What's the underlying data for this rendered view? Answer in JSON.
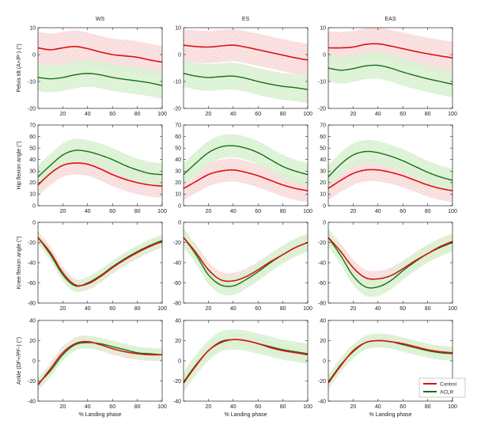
{
  "colors": {
    "control": "#dd1111",
    "aclr": "#1a6e1a",
    "control_band": "#f4b8b8",
    "aclr_band": "#bfe8b5"
  },
  "legend": {
    "control": "Control",
    "aclr": "ACLR",
    "placement": "inside-bottom-right-of-last-panel"
  },
  "xlabel": "% Landing phase",
  "columns": [
    "WS",
    "ES",
    "EAS"
  ],
  "chart_data": [
    {
      "type": "line",
      "row": 0,
      "col": 0,
      "title": "WS",
      "ylabel": "Pelvis tilt (A+/P-) (°)",
      "xlabel": "",
      "xlim": [
        0,
        100
      ],
      "ylim": [
        -20,
        10
      ],
      "xticks": [
        20,
        40,
        60,
        80,
        100
      ],
      "yticks": [
        -20,
        -10,
        0,
        10
      ],
      "x": [
        0,
        10,
        20,
        30,
        40,
        50,
        60,
        70,
        80,
        90,
        100
      ],
      "series": [
        {
          "name": "Control",
          "values": [
            2.5,
            1.8,
            2.5,
            3.0,
            2.2,
            1.0,
            0.0,
            -0.5,
            -1.0,
            -2.0,
            -2.8
          ],
          "band": 6
        },
        {
          "name": "ACLR",
          "values": [
            -8.5,
            -9.0,
            -8.5,
            -7.5,
            -7.0,
            -7.5,
            -8.5,
            -9.2,
            -9.8,
            -10.5,
            -11.5
          ],
          "band": 5
        }
      ]
    },
    {
      "type": "line",
      "row": 0,
      "col": 1,
      "title": "ES",
      "ylabel": "",
      "xlabel": "",
      "xlim": [
        0,
        100
      ],
      "ylim": [
        -20,
        10
      ],
      "xticks": [
        20,
        40,
        60,
        80,
        100
      ],
      "yticks": [
        -20,
        -10,
        0,
        10
      ],
      "x": [
        0,
        10,
        20,
        30,
        40,
        50,
        60,
        70,
        80,
        90,
        100
      ],
      "series": [
        {
          "name": "Control",
          "values": [
            3.5,
            3.0,
            2.8,
            3.2,
            3.5,
            2.8,
            1.8,
            0.8,
            -0.2,
            -1.2,
            -2.0
          ],
          "band": 6
        },
        {
          "name": "ACLR",
          "values": [
            -7.0,
            -8.0,
            -8.5,
            -8.2,
            -8.0,
            -8.8,
            -10.0,
            -11.0,
            -11.8,
            -12.3,
            -13.0
          ],
          "band": 5
        }
      ]
    },
    {
      "type": "line",
      "row": 0,
      "col": 2,
      "title": "EAS",
      "ylabel": "",
      "xlabel": "",
      "xlim": [
        0,
        100
      ],
      "ylim": [
        -20,
        10
      ],
      "xticks": [
        20,
        40,
        60,
        80,
        100
      ],
      "yticks": [
        -20,
        -10,
        0,
        10
      ],
      "x": [
        0,
        10,
        20,
        30,
        40,
        50,
        60,
        70,
        80,
        90,
        100
      ],
      "series": [
        {
          "name": "Control",
          "values": [
            2.5,
            2.5,
            2.8,
            3.8,
            4.0,
            3.2,
            2.2,
            1.2,
            0.3,
            -0.5,
            -1.2
          ],
          "band": 6
        },
        {
          "name": "ACLR",
          "values": [
            -5.0,
            -5.8,
            -5.2,
            -4.2,
            -4.0,
            -5.0,
            -6.5,
            -7.8,
            -9.0,
            -10.0,
            -11.0
          ],
          "band": 5
        }
      ]
    },
    {
      "type": "line",
      "row": 1,
      "col": 0,
      "title": "",
      "ylabel": "Hip flexion angle (°)",
      "xlabel": "",
      "xlim": [
        0,
        100
      ],
      "ylim": [
        0,
        70
      ],
      "xticks": [
        20,
        40,
        60,
        80,
        100
      ],
      "yticks": [
        0,
        10,
        20,
        30,
        40,
        50,
        60,
        70
      ],
      "x": [
        0,
        10,
        20,
        30,
        40,
        50,
        60,
        70,
        80,
        90,
        100
      ],
      "series": [
        {
          "name": "Control",
          "values": [
            18,
            28,
            35,
            37,
            36,
            32,
            27,
            23,
            20,
            18,
            17
          ],
          "band": 10
        },
        {
          "name": "ACLR",
          "values": [
            25,
            35,
            44,
            48,
            47,
            44,
            40,
            35,
            31,
            28,
            27
          ],
          "band": 10
        }
      ]
    },
    {
      "type": "line",
      "row": 1,
      "col": 1,
      "title": "",
      "ylabel": "",
      "xlabel": "",
      "xlim": [
        0,
        100
      ],
      "ylim": [
        0,
        70
      ],
      "xticks": [
        20,
        40,
        60,
        80,
        100
      ],
      "yticks": [
        0,
        10,
        20,
        30,
        40,
        50,
        60,
        70
      ],
      "x": [
        0,
        10,
        20,
        30,
        40,
        50,
        60,
        70,
        80,
        90,
        100
      ],
      "series": [
        {
          "name": "Control",
          "values": [
            15,
            21,
            27,
            30,
            31,
            29,
            26,
            22,
            18,
            15,
            13
          ],
          "band": 10
        },
        {
          "name": "ACLR",
          "values": [
            27,
            37,
            46,
            51,
            52,
            50,
            46,
            40,
            34,
            30,
            27
          ],
          "band": 10
        }
      ]
    },
    {
      "type": "line",
      "row": 1,
      "col": 2,
      "title": "",
      "ylabel": "",
      "xlabel": "",
      "xlim": [
        0,
        100
      ],
      "ylim": [
        0,
        70
      ],
      "xticks": [
        20,
        40,
        60,
        80,
        100
      ],
      "yticks": [
        0,
        10,
        20,
        30,
        40,
        50,
        60,
        70
      ],
      "x": [
        0,
        10,
        20,
        30,
        40,
        50,
        60,
        70,
        80,
        90,
        100
      ],
      "series": [
        {
          "name": "Control",
          "values": [
            15,
            22,
            28,
            31,
            31,
            29,
            26,
            22,
            18,
            15,
            13
          ],
          "band": 10
        },
        {
          "name": "ACLR",
          "values": [
            25,
            36,
            44,
            47,
            46,
            43,
            39,
            34,
            29,
            25,
            22
          ],
          "band": 10
        }
      ]
    },
    {
      "type": "line",
      "row": 2,
      "col": 0,
      "title": "",
      "ylabel": "Knee flexion angle (°)",
      "xlabel": "",
      "xlim": [
        0,
        100
      ],
      "ylim": [
        -80,
        0
      ],
      "xticks": [
        20,
        40,
        60,
        80,
        100
      ],
      "yticks": [
        -80,
        -60,
        -40,
        -20,
        0
      ],
      "x": [
        0,
        10,
        20,
        30,
        40,
        50,
        60,
        70,
        80,
        90,
        100
      ],
      "series": [
        {
          "name": "Control",
          "values": [
            -15,
            -30,
            -50,
            -62,
            -61,
            -54,
            -45,
            -37,
            -30,
            -24,
            -19
          ],
          "band": 6
        },
        {
          "name": "ACLR",
          "values": [
            -15,
            -32,
            -52,
            -63,
            -60,
            -53,
            -44,
            -36,
            -29,
            -23,
            -18
          ],
          "band": 6
        }
      ]
    },
    {
      "type": "line",
      "row": 2,
      "col": 1,
      "title": "",
      "ylabel": "",
      "xlabel": "",
      "xlim": [
        0,
        100
      ],
      "ylim": [
        -80,
        0
      ],
      "xticks": [
        20,
        40,
        60,
        80,
        100
      ],
      "yticks": [
        -80,
        -60,
        -40,
        -20,
        0
      ],
      "x": [
        0,
        10,
        20,
        30,
        40,
        50,
        60,
        70,
        80,
        90,
        100
      ],
      "series": [
        {
          "name": "Control",
          "values": [
            -15,
            -30,
            -47,
            -57,
            -58,
            -54,
            -47,
            -39,
            -32,
            -25,
            -20
          ],
          "band": 8
        },
        {
          "name": "ACLR",
          "values": [
            -15,
            -32,
            -52,
            -62,
            -63,
            -57,
            -49,
            -40,
            -32,
            -25,
            -20
          ],
          "band": 9
        }
      ]
    },
    {
      "type": "line",
      "row": 2,
      "col": 2,
      "title": "",
      "ylabel": "",
      "xlabel": "",
      "xlim": [
        0,
        100
      ],
      "ylim": [
        -80,
        0
      ],
      "xticks": [
        20,
        40,
        60,
        80,
        100
      ],
      "yticks": [
        -80,
        -60,
        -40,
        -20,
        0
      ],
      "x": [
        0,
        10,
        20,
        30,
        40,
        50,
        60,
        70,
        80,
        90,
        100
      ],
      "series": [
        {
          "name": "Control",
          "values": [
            -15,
            -29,
            -45,
            -55,
            -56,
            -53,
            -46,
            -38,
            -31,
            -24,
            -19
          ],
          "band": 8
        },
        {
          "name": "ACLR",
          "values": [
            -15,
            -33,
            -53,
            -64,
            -64,
            -58,
            -48,
            -39,
            -31,
            -25,
            -20
          ],
          "band": 9
        }
      ]
    },
    {
      "type": "line",
      "row": 3,
      "col": 0,
      "title": "",
      "ylabel": "Ankle (DF+/PF-) (°)",
      "xlabel": "% Landing phase",
      "xlim": [
        0,
        100
      ],
      "ylim": [
        -40,
        40
      ],
      "xticks": [
        20,
        40,
        60,
        80,
        100
      ],
      "yticks": [
        -40,
        -20,
        0,
        20,
        40
      ],
      "x": [
        0,
        10,
        20,
        30,
        40,
        50,
        60,
        70,
        80,
        90,
        100
      ],
      "series": [
        {
          "name": "Control",
          "values": [
            -24,
            -8,
            8,
            17,
            19,
            16,
            12,
            9,
            7,
            6,
            6
          ],
          "band": 6
        },
        {
          "name": "ACLR",
          "values": [
            -23,
            -10,
            6,
            16,
            18,
            17,
            14,
            11,
            8,
            7,
            6
          ],
          "band": 6
        }
      ]
    },
    {
      "type": "line",
      "row": 3,
      "col": 1,
      "title": "",
      "ylabel": "",
      "xlabel": "% Landing phase",
      "xlim": [
        0,
        100
      ],
      "ylim": [
        -40,
        40
      ],
      "xticks": [
        20,
        40,
        60,
        80,
        100
      ],
      "yticks": [
        -40,
        -20,
        0,
        20,
        40
      ],
      "x": [
        0,
        10,
        20,
        30,
        40,
        50,
        60,
        70,
        80,
        90,
        100
      ],
      "series": [
        {
          "name": "Control",
          "values": [
            -22,
            -5,
            10,
            18,
            21,
            20,
            17,
            13,
            10,
            8,
            6
          ],
          "band": 6
        },
        {
          "name": "ACLR",
          "values": [
            -21,
            -4,
            10,
            19,
            21,
            20,
            17,
            14,
            11,
            9,
            7
          ],
          "band": 10
        }
      ]
    },
    {
      "type": "line",
      "row": 3,
      "col": 2,
      "title": "",
      "ylabel": "",
      "xlabel": "% Landing phase",
      "xlim": [
        0,
        100
      ],
      "ylim": [
        -40,
        40
      ],
      "xticks": [
        20,
        40,
        60,
        80,
        100
      ],
      "yticks": [
        -40,
        -20,
        0,
        20,
        40
      ],
      "x": [
        0,
        10,
        20,
        30,
        40,
        50,
        60,
        70,
        80,
        90,
        100
      ],
      "series": [
        {
          "name": "Control",
          "values": [
            -22,
            -5,
            10,
            18,
            20,
            19,
            17,
            14,
            11,
            9,
            8
          ],
          "band": 6
        },
        {
          "name": "ACLR",
          "values": [
            -21,
            -4,
            9,
            18,
            20,
            19,
            16,
            13,
            10,
            8,
            7
          ],
          "band": 7
        }
      ]
    }
  ]
}
